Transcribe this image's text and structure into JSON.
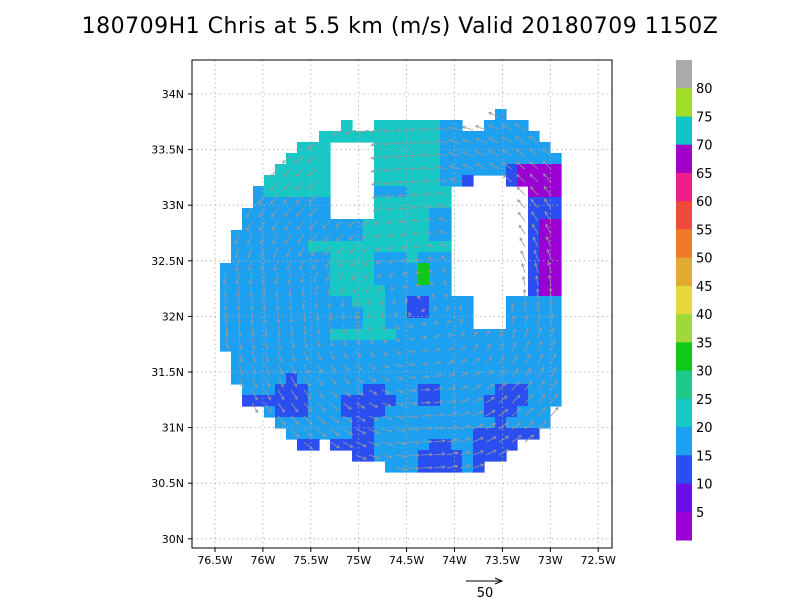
{
  "title": "180709H1 Chris at 5.5 km (m/s) Valid 20180709 1150Z",
  "lat_labels": [
    "34N",
    "33.5N",
    "33N",
    "32.5N",
    "32N",
    "31.5N",
    "31N",
    "30.5N",
    "30N"
  ],
  "lon_labels": [
    "76.5W",
    "76W",
    "75.5W",
    "75W",
    "74.5W",
    "74W",
    "73.5W",
    "73W",
    "72.5W"
  ],
  "vector_scale_label": "50",
  "colorbar": {
    "labels": [
      "5",
      "10",
      "15",
      "20",
      "25",
      "30",
      "35",
      "40",
      "45",
      "50",
      "55",
      "60",
      "65",
      "70",
      "75",
      "80"
    ],
    "colors": [
      "#9a00d2",
      "#6a10e6",
      "#2a4ef0",
      "#1ea0f0",
      "#18c8c4",
      "#1ec88a",
      "#10c81a",
      "#a0d83a",
      "#e6d83a",
      "#e2aa30",
      "#ee7a28",
      "#f04a3c",
      "#f01e8a",
      "#a000c8",
      "#10c4c8",
      "#a0dc28",
      "#aaaaaa"
    ]
  },
  "wind_field": {
    "units": "m/s",
    "level": "5.5 km",
    "storm": "Chris",
    "center_approx": {
      "lon": -74.4,
      "lat": 32.1
    },
    "colors": {
      "weak": "#2a4ef0",
      "moderate": "#1ea0f0",
      "strong": "#18c8c4",
      "max": "#10c81a",
      "very_weak": "#9a00d2",
      "arrow": "#999999"
    }
  }
}
